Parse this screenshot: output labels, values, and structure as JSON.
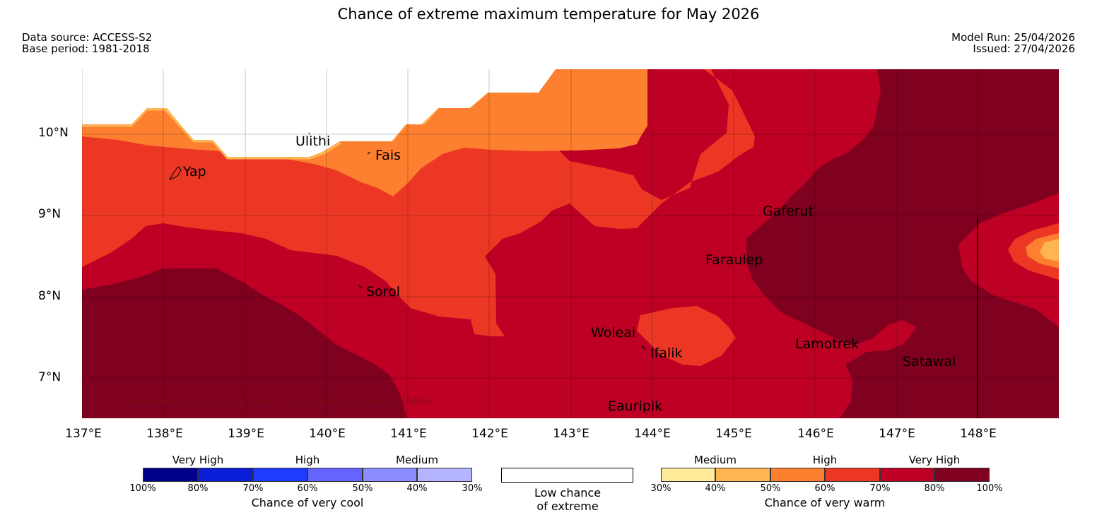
{
  "title": "Chance of extreme maximum temperature for May 2026",
  "meta": {
    "data_source": "Data source: ACCESS-S2",
    "base_period": "Base period: 1981-2018",
    "model_run": "Model Run: 25/04/2026",
    "issued": "Issued: 27/04/2026"
  },
  "axes": {
    "lat_ticks": [
      "10°N",
      "9°N",
      "8°N",
      "7°N"
    ],
    "lon_ticks": [
      "137°E",
      "138°E",
      "139°E",
      "140°E",
      "141°E",
      "142°E",
      "143°E",
      "144°E",
      "145°E",
      "146°E",
      "147°E",
      "148°E"
    ]
  },
  "places": {
    "ulithi": "Ulithi",
    "fais": "Fais",
    "yap": "Yap",
    "gaferut": "Gaferut",
    "faraulep": "Faraulep",
    "sorol": "Sorol",
    "woleai": "Woleai",
    "ifalik": "Ifalik",
    "lamotrek": "Lamotrek",
    "satawal": "Satawal",
    "eauripik": "Eauripik"
  },
  "copyright": "© Commonwealth of Australia 2026, Bureau of Meteorology, supported by COSPPac",
  "legend": {
    "cool": {
      "heads": [
        "Very High",
        "High",
        "Medium"
      ],
      "pcts": [
        "100%",
        "80%",
        "70%",
        "60%",
        "50%",
        "40%",
        "30%"
      ],
      "caption": "Chance of very cool",
      "colors": [
        "#00008b",
        "#0a1ed7",
        "#1e3cff",
        "#6464ff",
        "#8c8cff",
        "#b4b4ff"
      ]
    },
    "low": {
      "line1": "Low chance",
      "line2": "of extreme"
    },
    "warm": {
      "heads": [
        "Medium",
        "High",
        "Very High"
      ],
      "pcts": [
        "30%",
        "40%",
        "50%",
        "60%",
        "70%",
        "80%",
        "100%"
      ],
      "caption": "Chance of very warm",
      "colors": [
        "#ffeb99",
        "#feb552",
        "#fd7f30",
        "#ec3725",
        "#be0024",
        "#800020"
      ]
    }
  }
}
